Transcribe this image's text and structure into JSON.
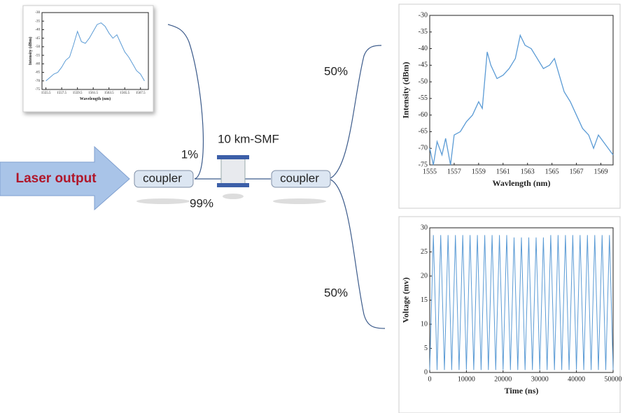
{
  "diagram": {
    "input": "Laser output",
    "coupler_1": "coupler",
    "coupler_2": "coupler",
    "fiber": "10 km-SMF",
    "tap_ratio": "1%",
    "main_ratio": "99%",
    "split_top": "50%",
    "split_bottom": "50%"
  },
  "chart_data": [
    {
      "type": "line",
      "x_label": "Wavelength (nm)",
      "y_label": "Intensity (dBm)",
      "xlim": [
        1555,
        1568.5
      ],
      "xticks": [
        1555.5,
        1557.5,
        1559.5,
        1561.5,
        1563.5,
        1565.5,
        1567.5
      ],
      "ylim": [
        -75,
        -30
      ],
      "yticks": [
        -75,
        -70,
        -65,
        -60,
        -55,
        -50,
        -45,
        -40,
        -35,
        -30
      ],
      "color": "#5b9bd5",
      "x": [
        1555.5,
        1556,
        1556.5,
        1557,
        1557.5,
        1558,
        1558.5,
        1559,
        1559.5,
        1560,
        1560.5,
        1561,
        1561.5,
        1562,
        1562.5,
        1563,
        1563.5,
        1564,
        1564.5,
        1565,
        1565.5,
        1566,
        1566.5,
        1567,
        1567.5,
        1568
      ],
      "values": [
        -70,
        -68,
        -66,
        -65,
        -62,
        -58,
        -56,
        -49,
        -41,
        -47,
        -48,
        -45,
        -41,
        -37,
        -36,
        -38,
        -42,
        -45,
        -43,
        -48,
        -53,
        -56,
        -60,
        -64,
        -66,
        -70
      ]
    },
    {
      "type": "line",
      "x_label": "Wavlength (nm)",
      "y_label": "Intensity (dBm)",
      "xlim": [
        1555,
        1570
      ],
      "xticks": [
        1555,
        1557,
        1559,
        1561,
        1563,
        1565,
        1567,
        1569
      ],
      "ylim": [
        -75,
        -30
      ],
      "yticks": [
        -75,
        -70,
        -65,
        -60,
        -55,
        -50,
        -45,
        -40,
        -35,
        -30
      ],
      "color": "#5b9bd5",
      "x": [
        1555,
        1555.3,
        1555.6,
        1556,
        1556.3,
        1556.7,
        1557,
        1557.5,
        1558,
        1558.5,
        1559,
        1559.3,
        1559.7,
        1560,
        1560.5,
        1561,
        1561.5,
        1562,
        1562.4,
        1562.8,
        1563.3,
        1563.8,
        1564.3,
        1564.8,
        1565.2,
        1565.6,
        1566,
        1566.5,
        1567,
        1567.5,
        1568,
        1568.4,
        1568.8,
        1569.2,
        1569.6,
        1570
      ],
      "values": [
        -70,
        -75,
        -68,
        -72,
        -67,
        -75,
        -66,
        -65,
        -62,
        -60,
        -56,
        -58,
        -41,
        -45,
        -49,
        -48,
        -46,
        -43,
        -36,
        -39,
        -40,
        -43,
        -46,
        -45,
        -43,
        -48,
        -53,
        -56,
        -60,
        -64,
        -66,
        -70,
        -66,
        -68,
        -70,
        -72
      ]
    },
    {
      "type": "line",
      "x_label": "Time (ns)",
      "y_label": "Voltage (mv)",
      "xlim": [
        0,
        50000
      ],
      "xticks": [
        0,
        10000,
        20000,
        30000,
        40000,
        50000
      ],
      "ylim": [
        0,
        30
      ],
      "yticks": [
        0,
        5,
        10,
        15,
        20,
        25,
        30
      ],
      "color": "#5b9bd5",
      "x": [
        0,
        1000,
        2000,
        3000,
        4000,
        5000,
        6000,
        7000,
        8000,
        9000,
        10000,
        11000,
        12000,
        13000,
        14000,
        15000,
        16000,
        17000,
        18000,
        19000,
        20000,
        21000,
        22000,
        23000,
        24000,
        25000,
        26000,
        27000,
        28000,
        29000,
        30000,
        31000,
        32000,
        33000,
        34000,
        35000,
        36000,
        37000,
        38000,
        39000,
        40000,
        41000,
        42000,
        43000,
        44000,
        45000,
        46000,
        47000,
        48000,
        49000,
        50000
      ],
      "values": [
        0.5,
        28.5,
        0.5,
        28.5,
        0.5,
        28.5,
        0.5,
        28.5,
        0.5,
        28.5,
        0.5,
        28.5,
        0.5,
        28.5,
        0.5,
        28.5,
        0.5,
        28.5,
        0.5,
        28.5,
        0.5,
        28.5,
        0.5,
        28,
        0.5,
        28,
        0.5,
        28,
        0.5,
        28,
        0.5,
        28,
        0.5,
        28.5,
        0.5,
        28.5,
        0.5,
        28.5,
        0.5,
        28.5,
        0.5,
        28.5,
        0.5,
        28.5,
        0.5,
        28.5,
        0.5,
        28.5,
        0.5,
        28.5,
        0.5
      ]
    }
  ]
}
